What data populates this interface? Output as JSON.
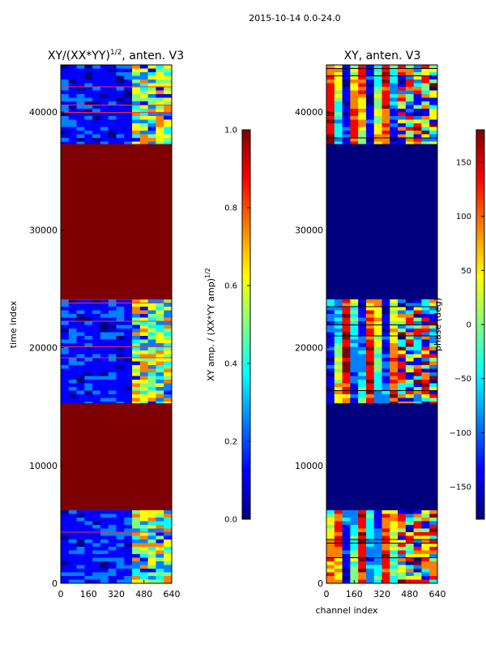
{
  "figure": {
    "suptitle": "2015-10-14 0.0-24.0"
  },
  "colors": {
    "jet": [
      "#00007f",
      "#0000ff",
      "#0080ff",
      "#00ffff",
      "#80ff80",
      "#ffff00",
      "#ff8000",
      "#ff0000",
      "#7f0000"
    ],
    "frame": "#000000",
    "flag_line": "#ff3030"
  },
  "chart_data": [
    {
      "type": "heatmap",
      "title_main": "XY/(XX*YY)",
      "title_sup": "1/2",
      "title_rest": ", anten. V3",
      "xlabel": "",
      "ylabel": "time index",
      "x_ticks": [
        "0",
        "160",
        "320",
        "480",
        "640"
      ],
      "x_tick_values": [
        0,
        160,
        320,
        480,
        640
      ],
      "y_ticks": [
        "0",
        "10000",
        "20000",
        "30000",
        "40000"
      ],
      "y_tick_values": [
        0,
        10000,
        20000,
        30000,
        40000
      ],
      "xlim": [
        0,
        640
      ],
      "ylim": [
        0,
        44000
      ],
      "bands": [
        {
          "from": 0,
          "to": 6200,
          "kind": "data"
        },
        {
          "from": 6200,
          "to": 15300,
          "kind": "flag"
        },
        {
          "from": 15300,
          "to": 24100,
          "kind": "data"
        },
        {
          "from": 24100,
          "to": 37300,
          "kind": "flag"
        },
        {
          "from": 37300,
          "to": 44000,
          "kind": "data"
        }
      ],
      "colorbar": {
        "label_main": "XY amp. / (XX*YY amp)",
        "label_sup": "1/2",
        "range": [
          0.0,
          1.0
        ],
        "ticks": [
          "0.0",
          "0.2",
          "0.4",
          "0.6",
          "0.8",
          "1.0"
        ],
        "tick_values": [
          0.0,
          0.2,
          0.4,
          0.6,
          0.8,
          1.0
        ]
      }
    },
    {
      "type": "heatmap",
      "title_main": "XY, anten. V3",
      "xlabel": "channel index",
      "ylabel": "",
      "x_ticks": [
        "0",
        "160",
        "320",
        "480",
        "640"
      ],
      "x_tick_values": [
        0,
        160,
        320,
        480,
        640
      ],
      "y_ticks": [
        "0",
        "10000",
        "20000",
        "30000",
        "40000"
      ],
      "y_tick_values": [
        0,
        10000,
        20000,
        30000,
        40000
      ],
      "xlim": [
        0,
        640
      ],
      "ylim": [
        0,
        44000
      ],
      "bands": [
        {
          "from": 0,
          "to": 6200,
          "kind": "data"
        },
        {
          "from": 6200,
          "to": 15300,
          "kind": "flag"
        },
        {
          "from": 15300,
          "to": 24100,
          "kind": "data"
        },
        {
          "from": 24100,
          "to": 37300,
          "kind": "flag"
        },
        {
          "from": 37300,
          "to": 44000,
          "kind": "data"
        }
      ],
      "colorbar": {
        "label_main": "phase (deg)",
        "range": [
          -180,
          180
        ],
        "ticks": [
          "150",
          "100",
          "50",
          "0",
          "−50",
          "−100",
          "−150"
        ],
        "tick_values": [
          150,
          100,
          50,
          0,
          -50,
          -100,
          -150
        ]
      }
    }
  ]
}
